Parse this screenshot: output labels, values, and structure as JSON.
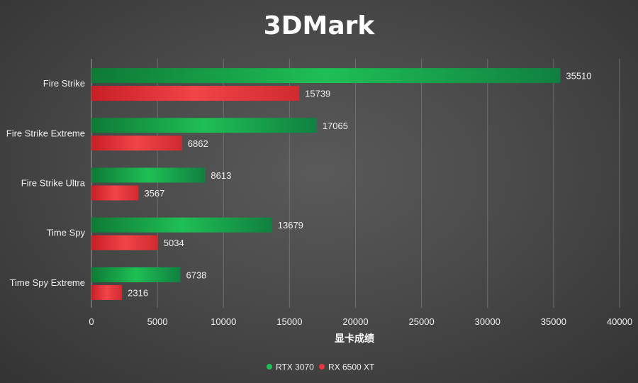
{
  "chart_data": {
    "type": "bar",
    "orientation": "horizontal",
    "title": "3DMark",
    "xlabel": "显卡成绩",
    "ylabel": "",
    "categories": [
      "Fire Strike",
      "Fire Strike Extreme",
      "Fire Strike Ultra",
      "Time Spy",
      "Time Spy Extreme"
    ],
    "series": [
      {
        "name": "RTX 3070",
        "color": "#1fbf55",
        "values": [
          35510,
          17065,
          8613,
          13679,
          6738
        ]
      },
      {
        "name": "RX 6500 XT",
        "color": "#e8383d",
        "values": [
          15739,
          6862,
          3567,
          5034,
          2316
        ]
      }
    ],
    "xlim": [
      0,
      40000
    ],
    "xticks": [
      0,
      5000,
      10000,
      15000,
      20000,
      25000,
      30000,
      35000,
      40000
    ],
    "grid": true,
    "legend_position": "bottom"
  }
}
